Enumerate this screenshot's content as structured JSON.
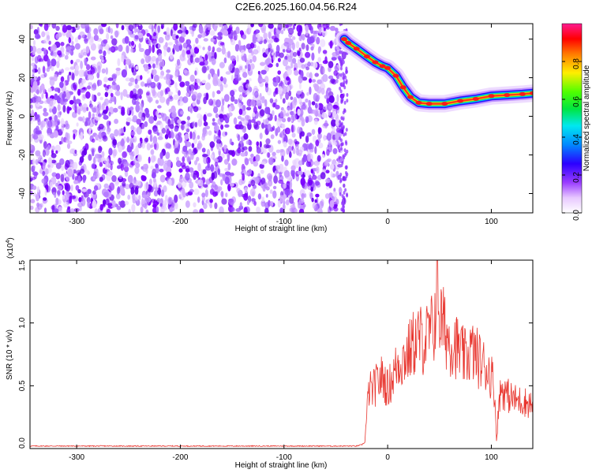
{
  "title": "C2E6.2025.160.04.56.R24",
  "colors": {
    "spectrogram_noise": "#7b00ff",
    "trace_ridge": "#ff2a2a",
    "snr_line": "#e8352e",
    "axis": "#000000"
  },
  "chart_data": [
    {
      "type": "heatmap",
      "xlabel": "Height of straight line (km)",
      "ylabel": "Frequency (Hz)",
      "xlim": [
        -345,
        140
      ],
      "ylim": [
        -50,
        48
      ],
      "xticks": [
        -300,
        -200,
        -100,
        0,
        100
      ],
      "yticks": [
        -40,
        -20,
        0,
        20,
        40
      ],
      "noise_region_x": [
        -345,
        -42
      ],
      "ridge": {
        "x": [
          -42,
          -38,
          -30,
          -20,
          -12,
          -5,
          0,
          8,
          15,
          22,
          30,
          40,
          55,
          70,
          85,
          100,
          115,
          130,
          140
        ],
        "frequency": [
          40,
          38,
          35,
          31,
          28,
          26,
          25,
          21,
          15,
          10,
          7,
          6.5,
          6.5,
          8,
          9,
          10.5,
          11,
          11.5,
          12
        ]
      },
      "colorbar": {
        "label": "Normalized spectral amplitude",
        "range": [
          0,
          1
        ],
        "ticks": [
          0.0,
          0.2,
          0.4,
          0.6,
          0.8
        ],
        "tick_labels": [
          "0.0",
          "0.2",
          "0.4",
          "0.6",
          "0.8"
        ]
      }
    },
    {
      "type": "line",
      "xlabel": "Height of straight line (km)",
      "ylabel": "SNR (10 * v/v)",
      "y_multiplier": "(x10",
      "y_multiplier_exp": "4",
      "y_multiplier_close": ")",
      "xlim": [
        -345,
        140
      ],
      "ylim": [
        0,
        1.5
      ],
      "xticks": [
        -300,
        -200,
        -100,
        0,
        100
      ],
      "yticks": [
        0.0,
        0.5,
        1.0,
        1.5
      ],
      "ytick_labels": [
        "0.0",
        "0.5",
        "1.0",
        "1.5"
      ],
      "series": [
        {
          "x": [
            -345,
            -300,
            -200,
            -100,
            -30,
            -25,
            -22,
            -20,
            -18,
            -15,
            -10,
            -5,
            0,
            5,
            10,
            15,
            20,
            25,
            30,
            35,
            40,
            45,
            48,
            50,
            55,
            60,
            65,
            70,
            75,
            80,
            85,
            90,
            95,
            100,
            103,
            105,
            108,
            110,
            115,
            120,
            125,
            130,
            135,
            140
          ],
          "values": [
            0.02,
            0.02,
            0.02,
            0.02,
            0.02,
            0.03,
            0.05,
            0.3,
            0.5,
            0.48,
            0.55,
            0.6,
            0.5,
            0.6,
            0.72,
            0.75,
            0.8,
            0.88,
            0.92,
            0.9,
            0.95,
            1.02,
            1.5,
            1.1,
            1.0,
            0.9,
            0.88,
            0.8,
            0.75,
            0.82,
            0.78,
            0.72,
            0.68,
            0.62,
            0.5,
            0.08,
            0.45,
            0.5,
            0.45,
            0.42,
            0.4,
            0.4,
            0.38,
            0.37
          ]
        }
      ]
    }
  ]
}
